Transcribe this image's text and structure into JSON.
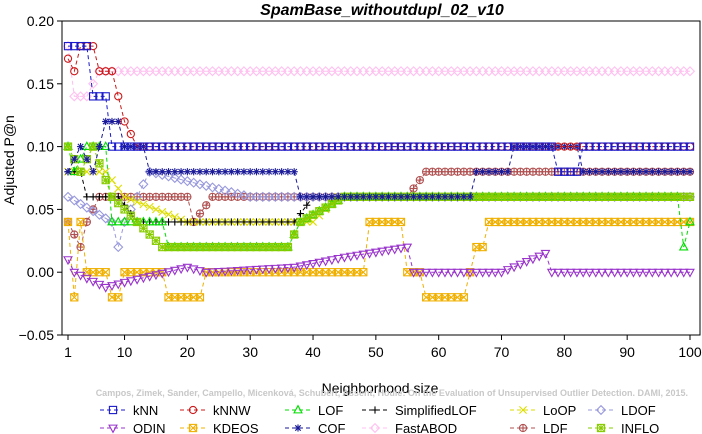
{
  "chart_data": {
    "type": "line",
    "title": "SpamBase_withoutdupl_02_v10",
    "xlabel": "Neighborhood size",
    "ylabel": "Adjusted P@n",
    "xlim": [
      1,
      100
    ],
    "ylim": [
      -0.05,
      0.2
    ],
    "x_ticks": [
      1,
      10,
      20,
      30,
      40,
      50,
      60,
      70,
      80,
      90,
      100
    ],
    "y_ticks": [
      -0.05,
      0.0,
      0.05,
      0.1,
      0.15,
      0.2
    ],
    "y_tick_labels": [
      "−0.05",
      "0.00",
      "0.05",
      "0.10",
      "0.15",
      "0.20"
    ],
    "grid": false,
    "legend_position": "bottom",
    "watermark": "Campos, Zimek, Sander, Campello, Micenková, Schubert, Assent, Houle: On the Evaluation of Unsupervised Outlier Detection. DAMI, 2015.",
    "series": [
      {
        "name": "kNN",
        "color": "#1a1acc",
        "marker": "square",
        "segments": [
          [
            1,
            0.18
          ],
          [
            4,
            0.18
          ],
          [
            5,
            0.14
          ],
          [
            7,
            0.14
          ],
          [
            8,
            0.1
          ],
          [
            78,
            0.1
          ],
          [
            79,
            0.08
          ],
          [
            82,
            0.08
          ],
          [
            83,
            0.1
          ],
          [
            100,
            0.1
          ]
        ]
      },
      {
        "name": "kNNW",
        "color": "#cc1a1a",
        "marker": "circle",
        "segments": [
          [
            1,
            0.17
          ],
          [
            2,
            0.16
          ],
          [
            3,
            0.18
          ],
          [
            5,
            0.18
          ],
          [
            6,
            0.16
          ],
          [
            8,
            0.16
          ],
          [
            9,
            0.14
          ],
          [
            10,
            0.12
          ],
          [
            12,
            0.1
          ],
          [
            100,
            0.1
          ]
        ]
      },
      {
        "name": "LOF",
        "color": "#00dd00",
        "marker": "triangle-up",
        "segments": [
          [
            1,
            0.1
          ],
          [
            2,
            0.08
          ],
          [
            4,
            0.1
          ],
          [
            7,
            0.1
          ],
          [
            8,
            0.04
          ],
          [
            16,
            0.04
          ],
          [
            17,
            0.02
          ],
          [
            36,
            0.02
          ],
          [
            38,
            0.04
          ],
          [
            45,
            0.06
          ],
          [
            98,
            0.06
          ],
          [
            99,
            0.02
          ],
          [
            100,
            0.04
          ]
        ]
      },
      {
        "name": "SimplifiedLOF",
        "color": "#000000",
        "marker": "plus",
        "segments": [
          [
            1,
            0.08
          ],
          [
            3,
            0.08
          ],
          [
            4,
            0.06
          ],
          [
            9,
            0.06
          ],
          [
            12,
            0.04
          ],
          [
            37,
            0.04
          ],
          [
            40,
            0.06
          ],
          [
            100,
            0.06
          ]
        ]
      },
      {
        "name": "LoOP",
        "color": "#dddd00",
        "marker": "x",
        "segments": [
          [
            1,
            0.08
          ],
          [
            7,
            0.08
          ],
          [
            10,
            0.06
          ],
          [
            20,
            0.04
          ],
          [
            40,
            0.04
          ],
          [
            44,
            0.06
          ],
          [
            100,
            0.06
          ]
        ]
      },
      {
        "name": "LDOF",
        "color": "#9999dd",
        "marker": "diamond",
        "segments": [
          [
            1,
            0.06
          ],
          [
            8,
            0.04
          ],
          [
            9,
            0.02
          ],
          [
            10,
            0.04
          ],
          [
            14,
            0.08
          ],
          [
            30,
            0.06
          ],
          [
            100,
            0.06
          ]
        ]
      },
      {
        "name": "ODIN",
        "color": "#9933cc",
        "marker": "triangle-down",
        "segments": [
          [
            1,
            0.01
          ],
          [
            2,
            0.0
          ],
          [
            7,
            -0.012
          ],
          [
            10,
            -0.008
          ],
          [
            20,
            0.004
          ],
          [
            23,
            0.0
          ],
          [
            37,
            0.004
          ],
          [
            45,
            0.012
          ],
          [
            55,
            0.02
          ],
          [
            56,
            0.0
          ],
          [
            70,
            0.0
          ],
          [
            77,
            0.015
          ],
          [
            78,
            0.0
          ],
          [
            100,
            0.0
          ]
        ]
      },
      {
        "name": "KDEOS",
        "color": "#f0b000",
        "marker": "square-x",
        "segments": [
          [
            1,
            0.04
          ],
          [
            2,
            -0.02
          ],
          [
            3,
            0.04
          ],
          [
            4,
            0.0
          ],
          [
            7,
            0.0
          ],
          [
            8,
            -0.02
          ],
          [
            9,
            -0.02
          ],
          [
            10,
            0.0
          ],
          [
            16,
            0.0
          ],
          [
            17,
            -0.02
          ],
          [
            22,
            -0.02
          ],
          [
            23,
            0.0
          ],
          [
            48,
            0.0
          ],
          [
            49,
            0.04
          ],
          [
            54,
            0.04
          ],
          [
            55,
            0.0
          ],
          [
            57,
            0.0
          ],
          [
            58,
            -0.02
          ],
          [
            64,
            -0.02
          ],
          [
            65,
            0.0
          ],
          [
            66,
            0.02
          ],
          [
            67,
            0.02
          ],
          [
            68,
            0.04
          ],
          [
            100,
            0.04
          ]
        ]
      },
      {
        "name": "COF",
        "color": "#1a1a99",
        "marker": "star",
        "segments": [
          [
            1,
            0.08
          ],
          [
            3,
            0.1
          ],
          [
            5,
            0.08
          ],
          [
            6,
            0.1
          ],
          [
            7,
            0.12
          ],
          [
            9,
            0.12
          ],
          [
            10,
            0.1
          ],
          [
            13,
            0.1
          ],
          [
            14,
            0.08
          ],
          [
            37,
            0.08
          ],
          [
            38,
            0.06
          ],
          [
            65,
            0.06
          ],
          [
            66,
            0.08
          ],
          [
            71,
            0.08
          ],
          [
            72,
            0.1
          ],
          [
            82,
            0.1
          ],
          [
            83,
            0.08
          ],
          [
            100,
            0.08
          ]
        ]
      },
      {
        "name": "FastABOD",
        "color": "#ffc0f0",
        "marker": "diamond",
        "segments": [
          [
            1,
            0.18
          ],
          [
            2,
            0.14
          ],
          [
            4,
            0.14
          ],
          [
            6,
            0.16
          ],
          [
            100,
            0.16
          ]
        ]
      },
      {
        "name": "LDF",
        "color": "#b05050",
        "marker": "circle-plus",
        "segments": [
          [
            1,
            0.04
          ],
          [
            3,
            0.02
          ],
          [
            4,
            0.04
          ],
          [
            6,
            0.06
          ],
          [
            20,
            0.06
          ],
          [
            21,
            0.04
          ],
          [
            24,
            0.06
          ],
          [
            37,
            0.06
          ],
          [
            38,
            0.06
          ],
          [
            55,
            0.06
          ],
          [
            58,
            0.08
          ],
          [
            100,
            0.08
          ]
        ]
      },
      {
        "name": "INFLO",
        "color": "#88cc00",
        "marker": "square-star",
        "segments": [
          [
            1,
            0.1
          ],
          [
            3,
            0.08
          ],
          [
            5,
            0.1
          ],
          [
            8,
            0.06
          ],
          [
            12,
            0.04
          ],
          [
            16,
            0.02
          ],
          [
            36,
            0.02
          ],
          [
            38,
            0.04
          ],
          [
            45,
            0.06
          ],
          [
            100,
            0.06
          ]
        ]
      }
    ]
  }
}
